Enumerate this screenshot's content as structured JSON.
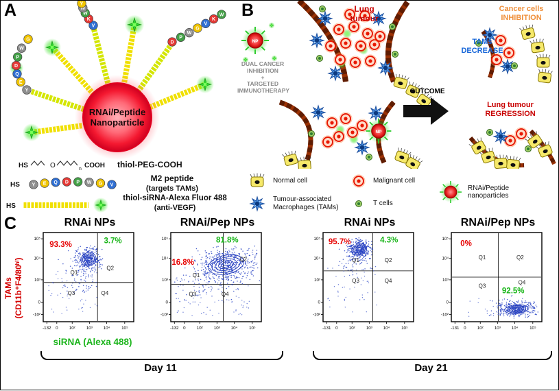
{
  "panel_a": {
    "label": "A",
    "core_label": "RNAi/Peptide\nNanoparticle",
    "bead_sequence": [
      "Y",
      "E",
      "Q",
      "D",
      "P",
      "W",
      "G",
      "V",
      "K",
      "W",
      "W",
      "Y"
    ],
    "chem": {
      "hs": "HS",
      "o": "O",
      "n": "n",
      "cooh": "COOH"
    },
    "legend": [
      {
        "label": "thiol-PEG-COOH",
        "sub": ""
      },
      {
        "label": "M2 peptide",
        "sub": "(targets TAMs)"
      },
      {
        "label": "thiol-siRNA-Alexa Fluor 488",
        "sub": "(anti-VEGF)"
      }
    ]
  },
  "panel_b": {
    "label": "B",
    "lung_tumour": "Lung\ntumour",
    "dual": "DUAL CANCER\nINHIBITION\n+\nTARGETED\nIMMUNOTHERAPY",
    "outcome": "OUTCOME",
    "cancer_inhibition": "Cancer cells\nINHIBITION",
    "tams_decrease": "TAMs\nDECREASE",
    "regression": "Lung tumour\nREGRESSION",
    "np_label": "NP",
    "legend": [
      {
        "label": "Normal cell"
      },
      {
        "label": "Malignant cell"
      },
      {
        "label": "RNAi/Peptide\nnanoparticles"
      },
      {
        "label": "Tumour-associated\nMacrophages (TAMs)"
      },
      {
        "label": "T cells"
      }
    ]
  },
  "panel_c": {
    "label": "C",
    "y_axis": "TAMs\n(CD11b⁺F4/80ʰⁱ)",
    "x_axis": "siRNA (Alexa 488)",
    "groups": [
      {
        "label": "Day 11"
      },
      {
        "label": "Day 21"
      }
    ]
  },
  "chart_data": {
    "type": "scatter",
    "description": "Flow cytometry contour plots: TAMs (CD11b+F4/80hi) vs siRNA (Alexa 488) signal",
    "red_color": "#e60000",
    "green_color": "#17b517",
    "plots": [
      {
        "title": "RNAi NPs",
        "day": "Day 11",
        "red": {
          "v": "93.3%",
          "x": 0.07,
          "y": 0.16
        },
        "green": {
          "v": "3.7%",
          "x": 0.67,
          "y": 0.12
        },
        "vline": 0.6,
        "hline": 0.56,
        "quadrants": [
          {
            "label": "Q1",
            "x": 0.3,
            "y": 0.47
          },
          {
            "label": "Q2",
            "x": 0.7,
            "y": 0.42
          },
          {
            "label": "Q3",
            "x": 0.27,
            "y": 0.7
          },
          {
            "label": "Q4",
            "x": 0.64,
            "y": 0.7
          }
        ],
        "cluster": {
          "cx": 0.5,
          "cy": 0.3,
          "rx": 0.085,
          "ry": 0.075,
          "rot": -25,
          "n": 320,
          "tail_dx": -0.22,
          "tail_dy": 0.3
        },
        "noise": {
          "n": 60,
          "x0": 0.05,
          "x1": 0.6,
          "y0": 0.42,
          "y1": 0.92
        },
        "xticks": [
          {
            "t": "-132",
            "p": 0.04
          },
          {
            "t": "0",
            "p": 0.15
          },
          {
            "t": "10²",
            "p": 0.32
          },
          {
            "t": "10³",
            "p": 0.51
          },
          {
            "t": "10⁴",
            "p": 0.7
          },
          {
            "t": "10⁵",
            "p": 0.9
          }
        ],
        "yticks": [
          {
            "t": "10⁵",
            "p": 0.07
          },
          {
            "t": "10⁴",
            "p": 0.29
          },
          {
            "t": "10³",
            "p": 0.53
          },
          {
            "t": "0",
            "p": 0.78
          },
          {
            "t": "-10²",
            "p": 0.92
          }
        ]
      },
      {
        "title": "RNAi/Pep NPs",
        "day": "Day 11",
        "red": {
          "v": "16.8%",
          "x": 0.01,
          "y": 0.36
        },
        "green": {
          "v": "81.8%",
          "x": 0.5,
          "y": 0.11
        },
        "vline": 0.58,
        "hline": 0.58,
        "quadrants": [
          {
            "label": "Q1",
            "x": 0.24,
            "y": 0.5
          },
          {
            "label": "Q2",
            "x": 0.76,
            "y": 0.32
          },
          {
            "label": "Q3",
            "x": 0.2,
            "y": 0.71
          },
          {
            "label": "Q4",
            "x": 0.56,
            "y": 0.71
          }
        ],
        "cluster": {
          "cx": 0.61,
          "cy": 0.36,
          "rx": 0.2,
          "ry": 0.105,
          "rot": -12,
          "n": 520,
          "tail_dx": -0.3,
          "tail_dy": 0.34
        },
        "noise": {
          "n": 90,
          "x0": 0.04,
          "x1": 0.9,
          "y0": 0.5,
          "y1": 0.95
        },
        "xticks": [
          {
            "t": "-132",
            "p": 0.04
          },
          {
            "t": "0",
            "p": 0.15
          },
          {
            "t": "10²",
            "p": 0.32
          },
          {
            "t": "10³",
            "p": 0.51
          },
          {
            "t": "10⁴",
            "p": 0.7
          },
          {
            "t": "10⁵",
            "p": 0.9
          }
        ],
        "yticks": [
          {
            "t": "10⁵",
            "p": 0.07
          },
          {
            "t": "10⁴",
            "p": 0.29
          },
          {
            "t": "10³",
            "p": 0.53
          },
          {
            "t": "0",
            "p": 0.78
          },
          {
            "t": "-10²",
            "p": 0.92
          }
        ]
      },
      {
        "title": "RNAi NPs",
        "day": "Day 21",
        "red": {
          "v": "95.7%",
          "x": 0.06,
          "y": 0.13
        },
        "green": {
          "v": "4.3%",
          "x": 0.63,
          "y": 0.11
        },
        "vline": 0.55,
        "hline": 0.43,
        "quadrants": [
          {
            "label": "Q1",
            "x": 0.32,
            "y": 0.33
          },
          {
            "label": "Q2",
            "x": 0.68,
            "y": 0.33
          },
          {
            "label": "Q3",
            "x": 0.32,
            "y": 0.56
          },
          {
            "label": "Q4",
            "x": 0.68,
            "y": 0.56
          }
        ],
        "cluster": {
          "cx": 0.4,
          "cy": 0.19,
          "rx": 0.085,
          "ry": 0.062,
          "rot": -20,
          "n": 320,
          "tail_dx": -0.12,
          "tail_dy": 0.22
        },
        "noise": {
          "n": 55,
          "x0": 0.05,
          "x1": 0.6,
          "y0": 0.3,
          "y1": 0.9
        },
        "xticks": [
          {
            "t": "-131",
            "p": 0.04
          },
          {
            "t": "0",
            "p": 0.15
          },
          {
            "t": "10²",
            "p": 0.32
          },
          {
            "t": "10³",
            "p": 0.51
          },
          {
            "t": "10⁴",
            "p": 0.7
          },
          {
            "t": "10⁵",
            "p": 0.9
          }
        ],
        "yticks": [
          {
            "t": "10⁵",
            "p": 0.07
          },
          {
            "t": "10⁴",
            "p": 0.29
          },
          {
            "t": "10³",
            "p": 0.53
          },
          {
            "t": "0",
            "p": 0.78
          },
          {
            "t": "-10²",
            "p": 0.92
          }
        ]
      },
      {
        "title": "RNAi/Pep NPs",
        "day": "Day 21",
        "red": {
          "v": "0%",
          "x": 0.1,
          "y": 0.15
        },
        "green": {
          "v": "92.5%",
          "x": 0.56,
          "y": 0.68
        },
        "vline": 0.52,
        "hline": 0.5,
        "quadrants": [
          {
            "label": "Q1",
            "x": 0.3,
            "y": 0.3
          },
          {
            "label": "Q2",
            "x": 0.72,
            "y": 0.3
          },
          {
            "label": "Q3",
            "x": 0.3,
            "y": 0.62
          },
          {
            "label": "Q4",
            "x": 0.74,
            "y": 0.58
          }
        ],
        "cluster": {
          "cx": 0.72,
          "cy": 0.86,
          "rx": 0.13,
          "ry": 0.05,
          "rot": -5,
          "n": 300,
          "tail_dx": -0.2,
          "tail_dy": -0.02
        },
        "noise": {
          "n": 30,
          "x0": 0.15,
          "x1": 0.95,
          "y0": 0.7,
          "y1": 0.95
        },
        "xticks": [
          {
            "t": "-131",
            "p": 0.04
          },
          {
            "t": "0",
            "p": 0.15
          },
          {
            "t": "10²",
            "p": 0.32
          },
          {
            "t": "10³",
            "p": 0.51
          },
          {
            "t": "10⁴",
            "p": 0.7
          },
          {
            "t": "10⁵",
            "p": 0.9
          }
        ],
        "yticks": [
          {
            "t": "10⁵",
            "p": 0.07
          },
          {
            "t": "10⁴",
            "p": 0.29
          },
          {
            "t": "10³",
            "p": 0.53
          },
          {
            "t": "0",
            "p": 0.78
          },
          {
            "t": "-10²",
            "p": 0.92
          }
        ]
      }
    ]
  }
}
